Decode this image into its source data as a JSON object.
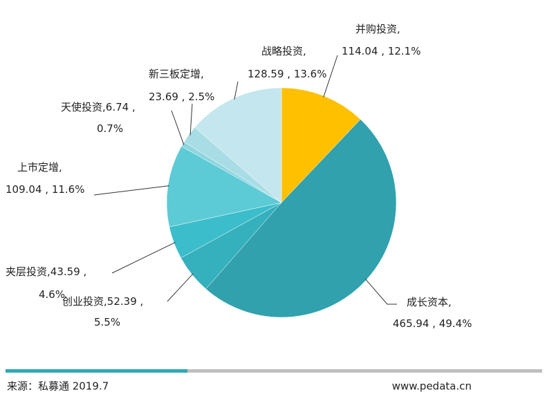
{
  "chart_data": {
    "type": "pie",
    "categories": [
      "并购投资",
      "成长资本",
      "创业投资",
      "夹层投资",
      "上市定增",
      "天使投资",
      "新三板定增",
      "战略投资"
    ],
    "values": [
      114.04,
      465.94,
      52.39,
      43.59,
      109.04,
      6.74,
      23.69,
      128.59
    ],
    "percents": [
      12.1,
      49.4,
      5.5,
      4.6,
      11.6,
      0.7,
      2.5,
      13.6
    ],
    "percent_labels": [
      "12.1%",
      "49.4%",
      "5.5%",
      "4.6%",
      "11.6%",
      "0.7%",
      "2.5%",
      "13.6%"
    ],
    "colors": [
      "#ffc000",
      "#30a1ad",
      "#35b0bd",
      "#3cbdcb",
      "#5ccbd6",
      "#8ed5de",
      "#a9dde5",
      "#c4e6ee"
    ],
    "name_separator": ",",
    "value_separator": " , "
  },
  "footer": {
    "source": "来源：私募通 2019.7",
    "website": "www.pedata.cn"
  }
}
